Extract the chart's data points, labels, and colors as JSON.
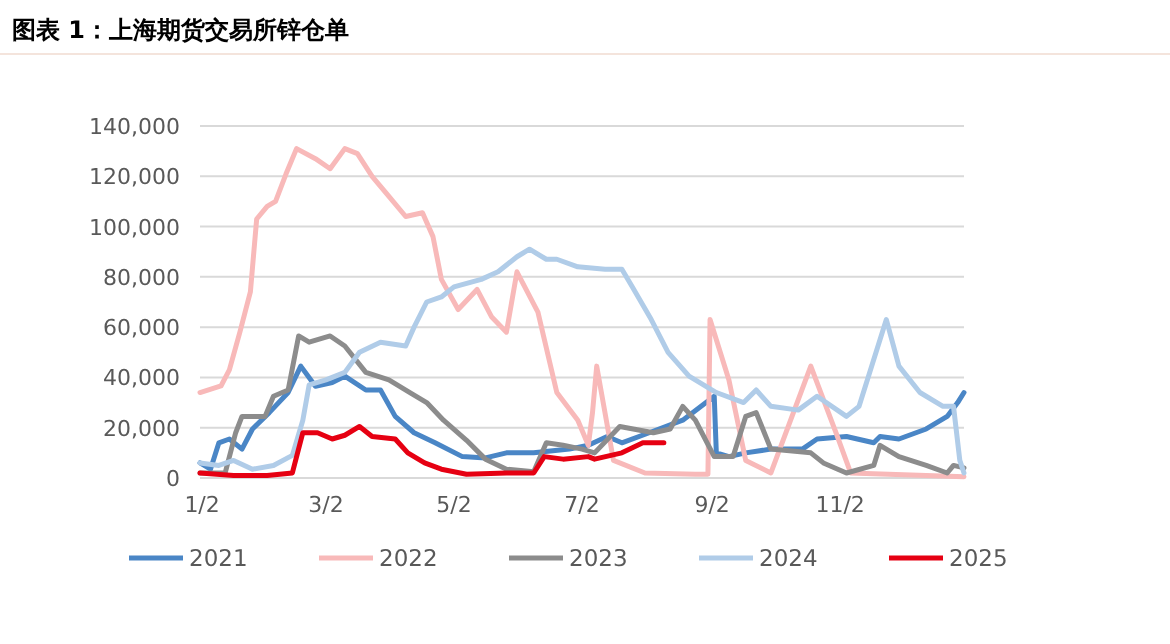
{
  "chart_data": {
    "type": "line",
    "title": "图表 1：上海期货交易所锌仓单",
    "xlim": [
      "--01-01",
      "--12-31"
    ],
    "xticks": [
      {
        "value": "--01-02",
        "label": "1/2"
      },
      {
        "value": "--03-02",
        "label": "3/2"
      },
      {
        "value": "--05-02",
        "label": "5/2"
      },
      {
        "value": "--07-02",
        "label": "7/2"
      },
      {
        "value": "--09-02",
        "label": "9/2"
      },
      {
        "value": "--11-02",
        "label": "11/2"
      }
    ],
    "ylim": [
      0,
      140000
    ],
    "yticks": [
      0,
      {
        "value": 20000,
        "label": "20,000"
      },
      {
        "value": 40000,
        "label": "40,000"
      },
      {
        "value": 60000,
        "label": "60,000"
      },
      {
        "value": 80000,
        "label": "80,000"
      },
      {
        "value": 100000,
        "label": "100,000"
      },
      {
        "value": 120000,
        "label": "120,000"
      },
      {
        "value": 140000,
        "label": "140,000"
      }
    ],
    "grid": "y",
    "legend": "bottom",
    "marker": "none",
    "line_style": "solid",
    "series": [
      {
        "name": "2021",
        "color": "#4a86c6",
        "x": [
          "--01-01",
          "--01-06",
          "--01-10",
          "--01-15",
          "--01-21",
          "--01-26",
          "--02-03",
          "--02-12",
          "--02-18",
          "--02-25",
          "--03-05",
          "--03-11",
          "--03-21",
          "--03-28",
          "--04-04",
          "--04-13",
          "--04-23",
          "--05-06",
          "--05-17",
          "--05-27",
          "--06-09",
          "--06-26",
          "--07-05",
          "--07-14",
          "--07-21",
          "--08-03",
          "--08-19",
          "--09-03",
          "--09-04",
          "--09-10",
          "--09-18",
          "--09-30",
          "--10-15",
          "--10-22",
          "--11-05",
          "--11-18",
          "--11-21",
          "--11-30",
          "--12-13",
          "--12-23",
          "--12-28",
          "--12-31"
        ],
        "values": [
          6000,
          3500,
          14000,
          15500,
          11500,
          19500,
          26000,
          34000,
          44500,
          36500,
          38000,
          40500,
          35000,
          35000,
          24500,
          18000,
          14000,
          8500,
          8000,
          10000,
          10000,
          11500,
          13000,
          16500,
          14000,
          18000,
          23000,
          32500,
          10000,
          8500,
          10000,
          11500,
          11500,
          15500,
          16500,
          14000,
          16500,
          15500,
          19500,
          24500,
          30000,
          34000
        ]
      },
      {
        "name": "2022",
        "color": "#f8b9b9",
        "x": [
          "--01-01",
          "--01-11",
          "--01-15",
          "--01-20",
          "--01-25",
          "--01-28",
          "--02-02",
          "--02-06",
          "--02-11",
          "--02-16",
          "--02-25",
          "--03-04",
          "--03-11",
          "--03-17",
          "--03-24",
          "--03-31",
          "--04-09",
          "--04-17",
          "--04-22",
          "--04-26",
          "--05-04",
          "--05-13",
          "--05-20",
          "--05-27",
          "--06-01",
          "--06-11",
          "--06-20",
          "--06-30",
          "--07-05",
          "--07-07",
          "--07-09",
          "--07-17",
          "--08-01",
          "--08-25",
          "--08-31",
          "--09-01",
          "--09-10",
          "--09-18",
          "--09-30",
          "--10-19",
          "--10-31",
          "--11-07",
          "--12-31"
        ],
        "values": [
          34000,
          36600,
          43000,
          58000,
          74000,
          103000,
          108000,
          110000,
          121000,
          131000,
          127000,
          123000,
          131000,
          129000,
          120000,
          113000,
          104000,
          105500,
          96000,
          79000,
          67000,
          75000,
          64000,
          58000,
          82000,
          66000,
          34000,
          23000,
          13000,
          26000,
          44500,
          7000,
          2000,
          1500,
          1500,
          63000,
          39000,
          7000,
          2000,
          44500,
          18000,
          2000,
          500
        ]
      },
      {
        "name": "2023",
        "color": "#8c8c8c",
        "x": [
          "--01-01",
          "--01-13",
          "--01-18",
          "--01-21",
          "--02-01",
          "--02-05",
          "--02-12",
          "--02-17",
          "--02-22",
          "--03-04",
          "--03-11",
          "--03-21",
          "--04-01",
          "--04-11",
          "--04-19",
          "--04-27",
          "--05-08",
          "--05-17",
          "--05-27",
          "--06-09",
          "--06-15",
          "--06-23",
          "--07-02",
          "--07-08",
          "--07-20",
          "--08-05",
          "--08-13",
          "--08-19",
          "--08-25",
          "--09-03",
          "--09-12",
          "--09-18",
          "--09-23",
          "--09-30",
          "--10-19",
          "--10-25",
          "--11-05",
          "--11-18",
          "--11-21",
          "--11-30",
          "--12-13",
          "--12-23",
          "--12-26",
          "--12-31"
        ],
        "values": [
          2000,
          2000,
          18000,
          24500,
          24500,
          32500,
          35000,
          56500,
          54000,
          56500,
          52500,
          42000,
          39000,
          34000,
          30000,
          23000,
          15000,
          7500,
          3500,
          2500,
          14000,
          13000,
          11500,
          10000,
          20500,
          18000,
          19500,
          28500,
          23000,
          8500,
          8500,
          24500,
          26000,
          11500,
          10000,
          6000,
          2000,
          5000,
          13000,
          8500,
          5000,
          2000,
          5000,
          4000
        ]
      },
      {
        "name": "2024",
        "color": "#b0cce8",
        "x": [
          "--01-01",
          "--01-10",
          "--01-17",
          "--01-26",
          "--02-05",
          "--02-14",
          "--02-19",
          "--02-22",
          "--03-02",
          "--03-11",
          "--03-18",
          "--03-28",
          "--04-09",
          "--04-13",
          "--04-19",
          "--04-26",
          "--05-02",
          "--05-15",
          "--05-23",
          "--06-01",
          "--06-07",
          "--06-15",
          "--06-20",
          "--06-30",
          "--07-13",
          "--07-21",
          "--07-26",
          "--08-04",
          "--08-12",
          "--08-22",
          "--09-04",
          "--09-17",
          "--09-23",
          "--09-30",
          "--10-13",
          "--10-22",
          "--11-05",
          "--11-11",
          "--11-24",
          "--11-30",
          "--12-10",
          "--12-21",
          "--12-26",
          "--12-29",
          "--12-31"
        ],
        "values": [
          6000,
          5000,
          7000,
          3500,
          5000,
          9000,
          23000,
          37000,
          39000,
          42000,
          50000,
          54000,
          52500,
          60000,
          70000,
          72000,
          76000,
          79000,
          82000,
          88000,
          91000,
          87000,
          87000,
          84000,
          83000,
          83000,
          76000,
          63000,
          50000,
          40500,
          34000,
          30000,
          35000,
          28500,
          27000,
          32500,
          24500,
          28500,
          63000,
          44500,
          34000,
          28500,
          28500,
          7000,
          2000
        ]
      },
      {
        "name": "2025",
        "color": "#e60012",
        "x": [
          "--01-01",
          "--01-17",
          "--02-02",
          "--02-14",
          "--02-19",
          "--02-26",
          "--03-05",
          "--03-11",
          "--03-18",
          "--03-24",
          "--04-04",
          "--04-10",
          "--04-18",
          "--04-26",
          "--05-08",
          "--05-27",
          "--06-09",
          "--06-14",
          "--06-23",
          "--07-05",
          "--07-08",
          "--07-21",
          "--07-31",
          "--08-10"
        ],
        "values": [
          2000,
          1000,
          1000,
          2000,
          18000,
          18000,
          15500,
          17000,
          20500,
          16500,
          15500,
          10000,
          6000,
          3500,
          1500,
          2000,
          2000,
          8500,
          7500,
          8500,
          7500,
          10000,
          14000,
          14000
        ]
      }
    ]
  }
}
